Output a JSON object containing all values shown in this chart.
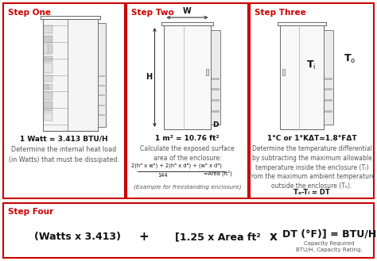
{
  "red_color": "#cc0000",
  "text_dark": "#111111",
  "text_gray": "#555555",
  "step1_title": "Step One",
  "step2_title": "Step Two",
  "step3_title": "Step Three",
  "step4_title": "Step Four",
  "step1_bold": "1 Watt = 3.413 BTU/H",
  "step1_body": "Determine the internal heat load\n(in Watts) that must be dissipated.",
  "step2_bold": "1 m² = 10.76 ft²",
  "step2_body1": "Calculate the exposed surface\narea of the enclosure:",
  "step2_body2": "(Example for freestanding enclosure)",
  "step3_bold": "1°C or 1°KΔT=1.8°FΔT",
  "step3_body": "Determine the temperature differential\nby subtracting the maximum allowable\ntemperature inside the enclosure (Tᵢ)\nfrom the maximum ambient temperature\noutside the enclosure (Tₒ).",
  "step3_formula": "Tₒ-Tᵢ = DT",
  "step4_part1": "(Watts x 3.413)",
  "step4_plus": "+",
  "step4_part2": "[1.25 x Area ft²",
  "step4_times": "x",
  "step4_part3": "DT (°F)] = BTU/H",
  "step4_sub1": "Capacity Required",
  "step4_sub2": "BTU/H, Capacity Rating."
}
